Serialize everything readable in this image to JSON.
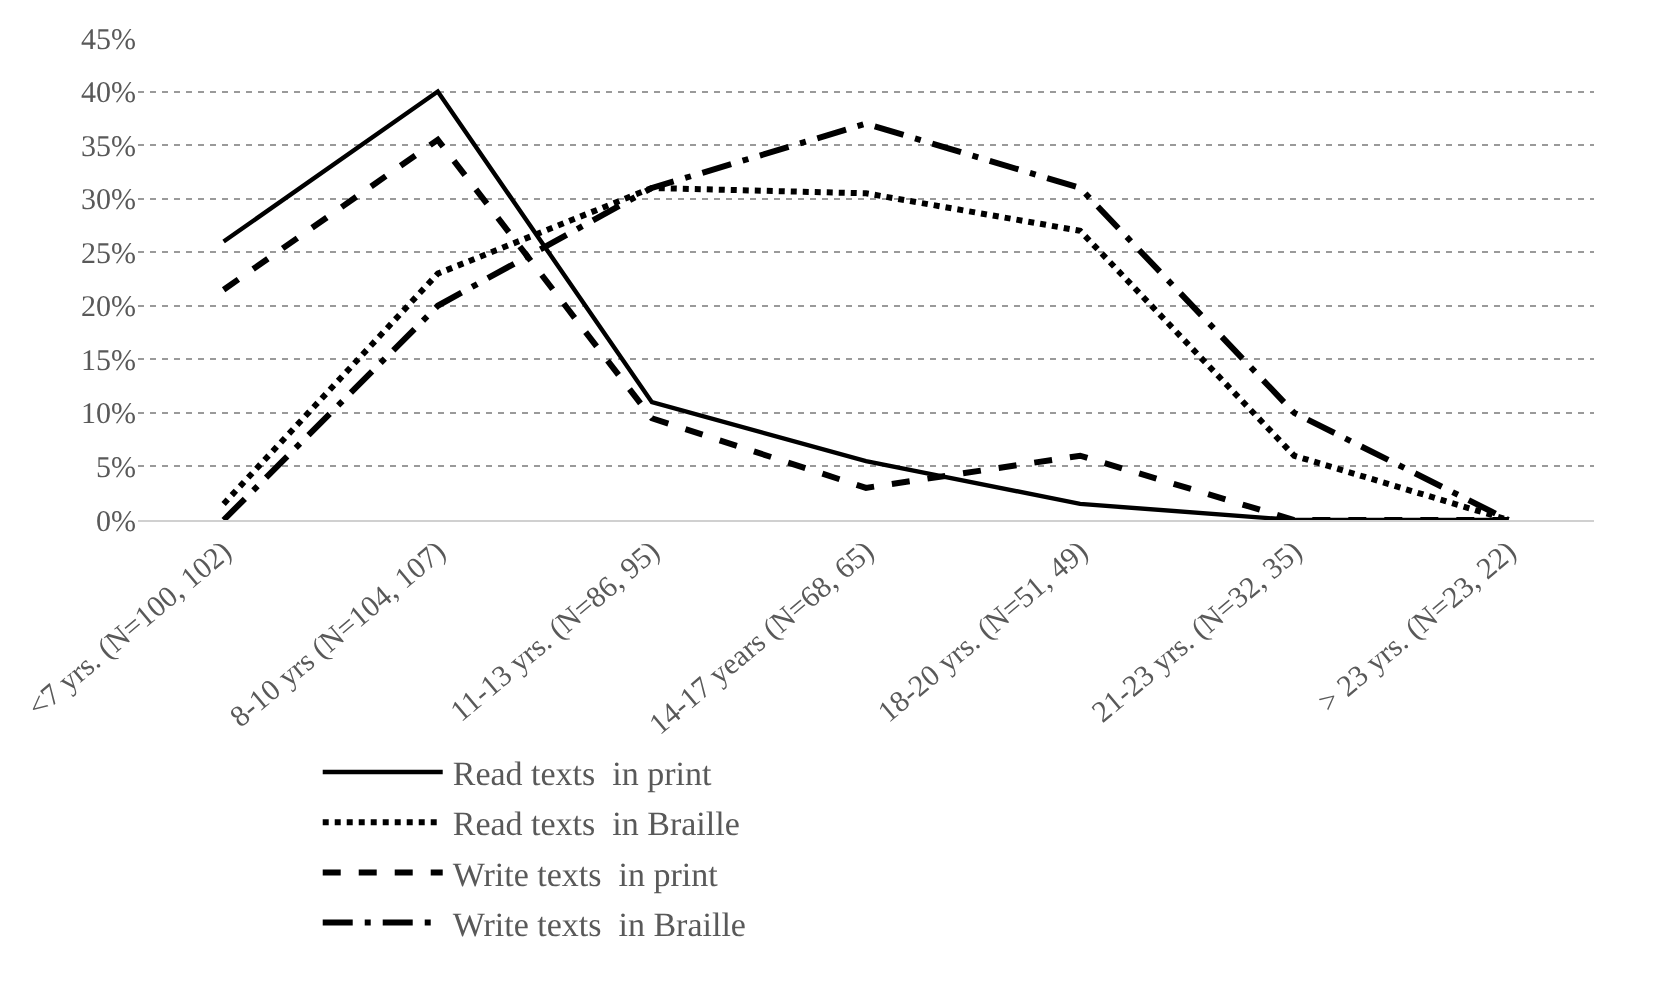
{
  "chart_data": {
    "type": "line",
    "categories": [
      "<7 yrs. (N=100, 102)",
      "8-10 yrs (N=104, 107)",
      "11-13 yrs. (N=86, 95)",
      "14-17 years (N=68, 65)",
      "18-20 yrs. (N=51, 49)",
      "21-23 yrs. (N=32, 35)",
      "> 23 yrs. (N=23, 22)"
    ],
    "series": [
      {
        "name": "Read texts  in print",
        "color": "#000000",
        "line_style": "solid",
        "values": [
          26,
          40,
          11,
          5.5,
          1.5,
          0,
          0
        ]
      },
      {
        "name": "Read texts  in Braille",
        "color": "#000000",
        "line_style": "dotted",
        "values": [
          1.5,
          23,
          31,
          30.5,
          27,
          6,
          0
        ]
      },
      {
        "name": "Write texts  in print",
        "color": "#000000",
        "line_style": "dashed",
        "values": [
          21.5,
          35.5,
          9.5,
          3,
          6,
          0,
          0
        ]
      },
      {
        "name": "Write texts  in Braille",
        "color": "#000000",
        "line_style": "dashdot",
        "values": [
          0,
          20,
          31,
          37,
          31,
          10,
          0
        ]
      }
    ],
    "ylim": [
      0,
      45
    ],
    "yticks": [
      {
        "value": 0,
        "label": "0%"
      },
      {
        "value": 5,
        "label": "5%"
      },
      {
        "value": 10,
        "label": "10%"
      },
      {
        "value": 15,
        "label": "15%"
      },
      {
        "value": 20,
        "label": "20%"
      },
      {
        "value": 25,
        "label": "25%"
      },
      {
        "value": 30,
        "label": "30%"
      },
      {
        "value": 35,
        "label": "35%"
      },
      {
        "value": 40,
        "label": "40%"
      },
      {
        "value": 45,
        "label": "45%"
      }
    ],
    "grid": "y",
    "legend": "bottom",
    "marker": "none"
  }
}
